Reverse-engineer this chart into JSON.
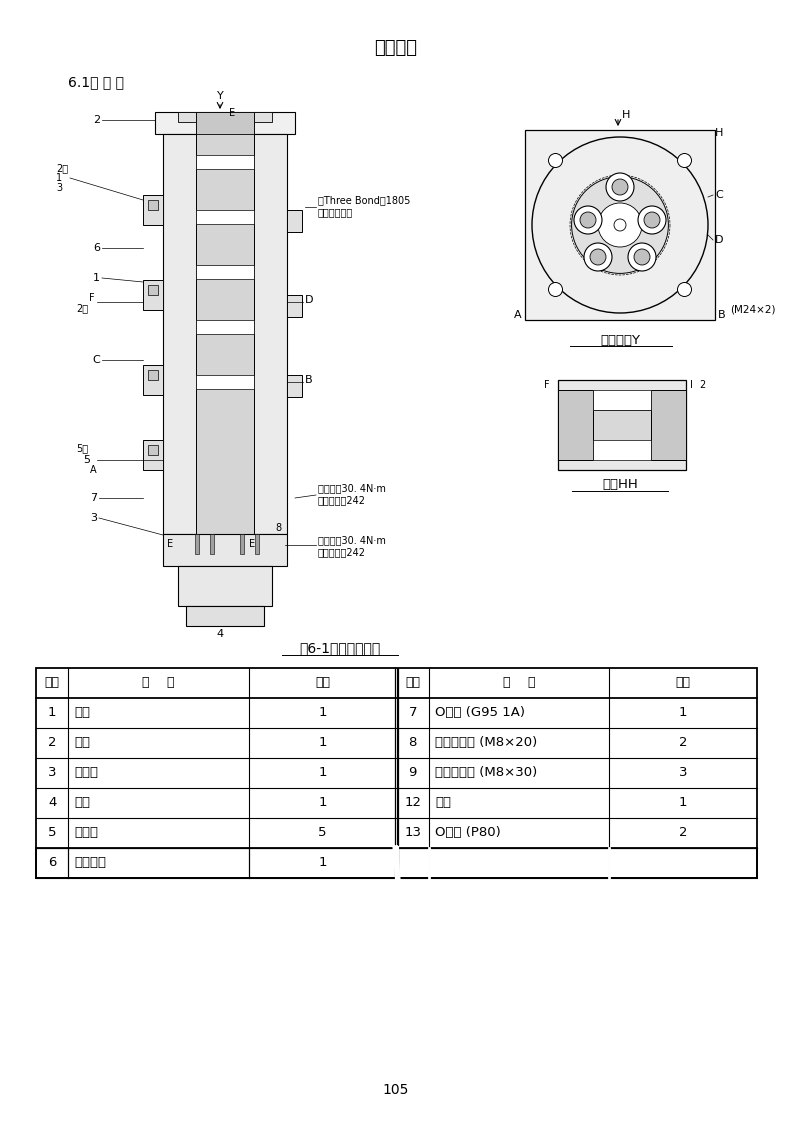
{
  "page_title": "回转接头",
  "section_title": "6.1组 装 图",
  "figure_caption": "图6-1回转接头构造",
  "page_number": "105",
  "table_header": [
    "符号",
    "名    称",
    "数量",
    "符号",
    "名    称",
    "数量"
  ],
  "table_rows": [
    [
      "1",
      "主体",
      "1",
      "7",
      "O型圈 (G95 1A)",
      "1"
    ],
    [
      "2",
      "轴杆",
      "1",
      "8",
      "内六角螺栓 (M8×20)",
      "2"
    ],
    [
      "3",
      "推力板",
      "1",
      "9",
      "内六角螺栓 (M8×30)",
      "3"
    ],
    [
      "4",
      "壳罩",
      "1",
      "12",
      "堵头",
      "1"
    ],
    [
      "5",
      "密封件",
      "5",
      "13",
      "O型圈 (P80)",
      "2"
    ],
    [
      "6",
      "密封总成",
      "1",
      "",
      "",
      ""
    ]
  ],
  "bg_color": "#ffffff",
  "text_color": "#000000",
  "diagram_note1": "将Three Bond＃1805\n涂布在轴杆上",
  "diagram_note2": "紧固扭矩30. 4N·m\n涂布乐泰胶242",
  "diagram_note3": "紧固扭矩30. 4N·m\n涂布乐泰胶242",
  "arrow_view_label": "箭头视图Y",
  "section_label": "截面HH"
}
